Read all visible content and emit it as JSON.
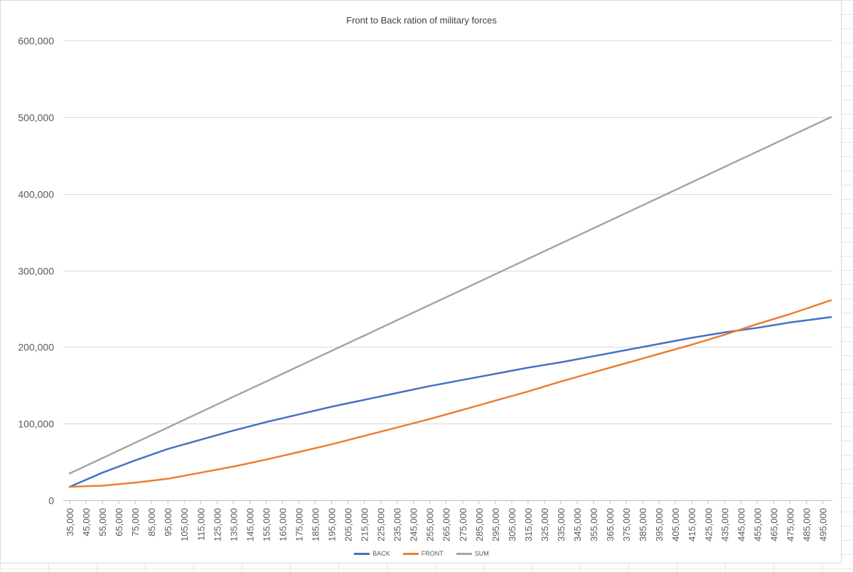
{
  "chart_data": {
    "type": "line",
    "title": "Front to Back ration of military forces",
    "xlabel": "",
    "ylabel": "",
    "ylim": [
      0,
      600000
    ],
    "yticks": [
      "0",
      "100,000",
      "200,000",
      "300,000",
      "400,000",
      "500,000",
      "600,000"
    ],
    "x_tick_labels": [
      "35,000",
      "45,000",
      "55,000",
      "65,000",
      "75,000",
      "85,000",
      "95,000",
      "105,000",
      "115,000",
      "125,000",
      "135,000",
      "145,000",
      "155,000",
      "165,000",
      "175,000",
      "185,000",
      "195,000",
      "205,000",
      "215,000",
      "225,000",
      "235,000",
      "245,000",
      "255,000",
      "265,000",
      "275,000",
      "285,000",
      "295,000",
      "305,000",
      "315,000",
      "325,000",
      "335,000",
      "345,000",
      "355,000",
      "365,000",
      "375,000",
      "385,000",
      "395,000",
      "405,000",
      "415,000",
      "425,000",
      "435,000",
      "445,000",
      "455,000",
      "465,000",
      "475,000",
      "485,000",
      "495,000"
    ],
    "x": [
      35000,
      55000,
      75000,
      95000,
      115000,
      135000,
      155000,
      175000,
      195000,
      215000,
      235000,
      255000,
      275000,
      295000,
      315000,
      335000,
      355000,
      375000,
      395000,
      415000,
      435000,
      455000,
      475000,
      500000
    ],
    "series": [
      {
        "name": "BACK",
        "color": "#4472c4",
        "values": [
          17500,
          36000,
          52000,
          67000,
          79000,
          91000,
          102000,
          112000,
          122000,
          131000,
          140000,
          149000,
          157000,
          165000,
          173000,
          180000,
          188000,
          196000,
          204000,
          212000,
          219000,
          225000,
          232000,
          239000
        ]
      },
      {
        "name": "FRONT",
        "color": "#ed7d31",
        "values": [
          17500,
          19000,
          23000,
          28000,
          36000,
          44000,
          53000,
          63000,
          73000,
          84000,
          95000,
          106000,
          118000,
          130000,
          142000,
          155000,
          167000,
          179000,
          191000,
          203000,
          216000,
          230000,
          243000,
          261000
        ]
      },
      {
        "name": "SUM",
        "color": "#a5a5a5",
        "values": [
          35000,
          55000,
          75000,
          95000,
          115000,
          135000,
          155000,
          175000,
          195000,
          215000,
          235000,
          255000,
          275000,
          295000,
          315000,
          335000,
          355000,
          375000,
          395000,
          415000,
          435000,
          455000,
          475000,
          500000
        ]
      }
    ],
    "grid": true,
    "legend_position": "bottom"
  }
}
